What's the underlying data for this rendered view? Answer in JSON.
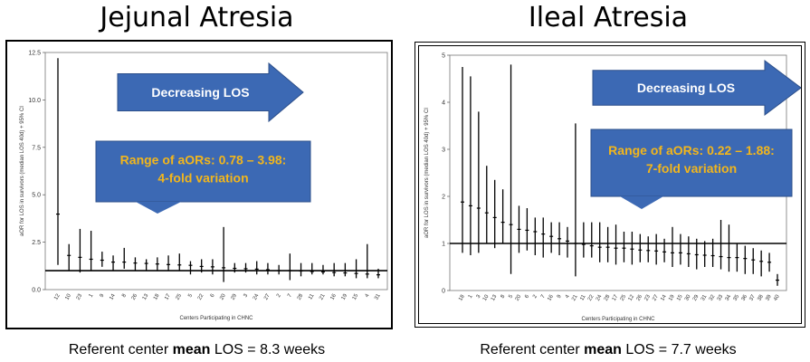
{
  "panels": [
    {
      "title": "Jejunal Atresia",
      "footer": {
        "prefix": "Referent center ",
        "bold": "mean",
        "suffix": " LOS = 8.3 weeks"
      },
      "arrow_label": "Decreasing LOS",
      "callout": {
        "line1": "Range of aORs: 0.78 – 3.98:",
        "line2": "4-fold variation"
      },
      "colors": {
        "arrow_fill": "#3c69b4",
        "callout_text": "#f2b61c",
        "arrow_text": "#ffffff"
      }
    },
    {
      "title": "Ileal Atresia",
      "footer": {
        "prefix": "Referent center ",
        "bold": "mean",
        "suffix": " LOS = 7.7 weeks"
      },
      "arrow_label": "Decreasing LOS",
      "callout": {
        "line1": "Range of aORs: 0.22 – 1.88:",
        "line2": "7-fold variation"
      },
      "colors": {
        "arrow_fill": "#3c69b4",
        "callout_text": "#f2b61c",
        "arrow_text": "#ffffff"
      }
    }
  ],
  "chart_data": [
    {
      "type": "errorbar",
      "xlabel": "Centers Participating in CHNC",
      "ylabel": "aOR for LOS in survivors (median LOS 40d) + 95% CI",
      "ylim": [
        0,
        12.5
      ],
      "yticks": [
        "0.0",
        "2.5",
        "5.0",
        "7.5",
        "10.0",
        "12.5"
      ],
      "reference_line": 1,
      "categories": [
        "12",
        "10",
        "23",
        "1",
        "9",
        "14",
        "8",
        "26",
        "13",
        "18",
        "17",
        "25",
        "5",
        "22",
        "6",
        "20",
        "29",
        "3",
        "24",
        "27",
        "2",
        "7",
        "28",
        "11",
        "21",
        "16",
        "19",
        "15",
        "4",
        "31"
      ],
      "estimate": [
        3.98,
        1.8,
        1.7,
        1.6,
        1.55,
        1.45,
        1.45,
        1.4,
        1.38,
        1.35,
        1.32,
        1.3,
        1.28,
        1.22,
        1.2,
        1.15,
        1.12,
        1.1,
        1.08,
        1.05,
        1.0,
        1.0,
        0.98,
        0.95,
        0.93,
        0.9,
        0.88,
        0.85,
        0.82,
        0.78
      ],
      "lower": [
        1.3,
        1.0,
        0.9,
        1.0,
        1.2,
        1.0,
        1.1,
        1.0,
        1.0,
        1.0,
        1.0,
        1.0,
        0.8,
        0.9,
        0.8,
        0.4,
        0.9,
        0.9,
        0.8,
        0.8,
        0.8,
        0.5,
        0.7,
        0.8,
        0.8,
        0.7,
        0.7,
        0.6,
        0.6,
        0.6
      ],
      "upper": [
        12.2,
        2.4,
        3.2,
        3.1,
        2.0,
        1.8,
        2.2,
        1.7,
        1.6,
        1.7,
        1.8,
        1.9,
        1.5,
        1.6,
        1.6,
        3.3,
        1.4,
        1.4,
        1.5,
        1.4,
        1.3,
        1.9,
        1.4,
        1.4,
        1.3,
        1.4,
        1.4,
        1.6,
        2.4,
        1.1
      ]
    },
    {
      "type": "errorbar",
      "xlabel": "Centers Participating in CHNC",
      "ylabel": "aOR for LOS in survivors (median LOS 40d) + 95% CI",
      "ylim": [
        0,
        5
      ],
      "yticks": [
        "0",
        "1",
        "2",
        "3",
        "4",
        "5"
      ],
      "reference_line": 1,
      "categories": [
        "18",
        "1",
        "3",
        "10",
        "13",
        "8",
        "5",
        "20",
        "6",
        "2",
        "7",
        "16",
        "9",
        "4",
        "21",
        "11",
        "22",
        "24",
        "28",
        "17",
        "25",
        "12",
        "26",
        "23",
        "27",
        "14",
        "19",
        "15",
        "30",
        "29",
        "31",
        "32",
        "33",
        "34",
        "35",
        "36",
        "37",
        "38",
        "39",
        "40"
      ],
      "estimate": [
        1.88,
        1.8,
        1.75,
        1.65,
        1.55,
        1.45,
        1.4,
        1.3,
        1.28,
        1.25,
        1.2,
        1.15,
        1.1,
        1.05,
        1.0,
        0.98,
        0.95,
        0.92,
        0.92,
        0.9,
        0.9,
        0.88,
        0.86,
        0.85,
        0.84,
        0.82,
        0.8,
        0.8,
        0.78,
        0.76,
        0.75,
        0.74,
        0.72,
        0.7,
        0.7,
        0.68,
        0.65,
        0.62,
        0.6,
        0.22
      ],
      "lower": [
        0.8,
        0.75,
        0.8,
        1.0,
        0.9,
        1.0,
        0.35,
        0.8,
        0.85,
        0.75,
        0.7,
        0.8,
        0.75,
        0.7,
        0.3,
        0.7,
        0.7,
        0.6,
        0.6,
        0.55,
        0.6,
        0.55,
        0.6,
        0.6,
        0.55,
        0.6,
        0.5,
        0.55,
        0.5,
        0.45,
        0.5,
        0.5,
        0.45,
        0.4,
        0.4,
        0.35,
        0.35,
        0.3,
        0.4,
        0.1
      ],
      "upper": [
        4.75,
        4.55,
        3.8,
        2.65,
        2.35,
        2.15,
        4.8,
        1.8,
        1.75,
        1.55,
        1.55,
        1.45,
        1.45,
        1.35,
        3.55,
        1.45,
        1.45,
        1.45,
        1.35,
        1.4,
        1.25,
        1.25,
        1.2,
        1.15,
        1.2,
        1.1,
        1.35,
        1.2,
        1.15,
        1.1,
        1.05,
        1.1,
        1.5,
        1.4,
        1.0,
        0.95,
        0.9,
        0.85,
        0.8,
        0.35
      ]
    }
  ]
}
